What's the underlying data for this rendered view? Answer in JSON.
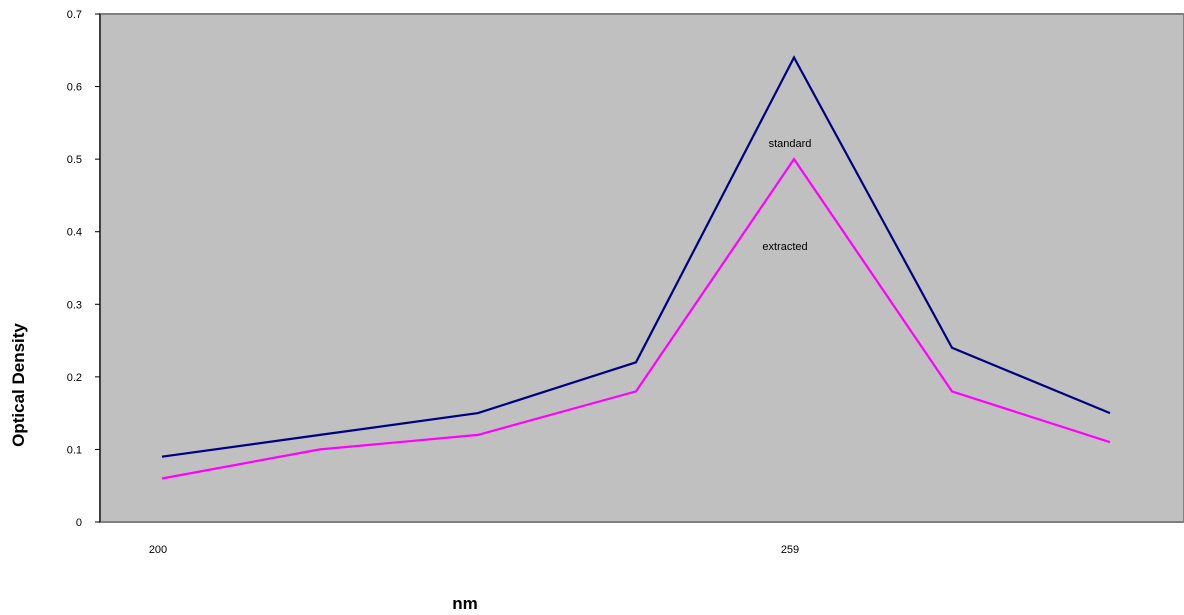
{
  "chart_data": {
    "type": "line",
    "title": "",
    "xlabel": "nm",
    "ylabel": "Optical Density",
    "ylim": [
      0,
      0.7
    ],
    "yticks": [
      "0",
      "0.1",
      "0.2",
      "0.3",
      "0.4",
      "0.5",
      "0.6",
      "0.7"
    ],
    "x_points": 7,
    "xtick_labels": [
      {
        "index": 0,
        "label": "200"
      },
      {
        "index": 4,
        "label": "259"
      }
    ],
    "grid": false,
    "legend": "none",
    "plot_background": "#c0c0c0",
    "series": [
      {
        "name": "standard",
        "color": "#000080",
        "values": [
          0.09,
          0.12,
          0.15,
          0.22,
          0.64,
          0.24,
          0.15
        ]
      },
      {
        "name": "extracted",
        "color": "#ff00ff",
        "values": [
          0.06,
          0.1,
          0.12,
          0.18,
          0.5,
          0.18,
          0.11
        ]
      }
    ]
  }
}
